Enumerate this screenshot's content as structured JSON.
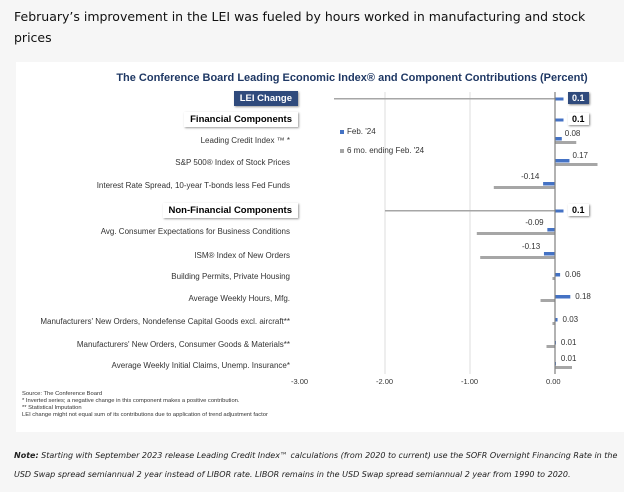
{
  "headline": "February’s improvement in the LEI was fueled by hours worked in manufacturing and stock prices",
  "chart_data": {
    "type": "bar",
    "orientation": "horizontal",
    "title": "The Conference Board Leading Economic Index® and Component Contributions (Percent)",
    "categories": [
      "LEI Change",
      "Financial Components",
      "Leading Credit Index ™ *",
      "S&P 500® Index of Stock Prices",
      "Interest Rate Spread, 10-year T-bonds less Fed Funds",
      "Non-Financial Components",
      "Avg. Consumer Expectations for Business Conditions",
      "ISM® Index of New Orders",
      "Building Permits, Private Housing",
      "Average Weekly Hours, Mfg.",
      "Manufacturers' New Orders, Nondefense Capital Goods excl. aircraft**",
      "Manufacturers' New Orders, Consumer Goods & Materials**",
      "Average Weekly Initial Claims, Unemp. Insurance*"
    ],
    "header_rows": [
      0,
      1,
      5
    ],
    "series": [
      {
        "name": "Feb. '24",
        "color": "#4472c4",
        "values": [
          0.1,
          0.1,
          0.08,
          0.17,
          -0.14,
          0.1,
          -0.09,
          -0.13,
          0.06,
          0.18,
          0.03,
          0.01,
          0.01
        ],
        "labels": [
          "0.1",
          "0.1",
          "0.08",
          "0.17",
          "-0.14",
          "0.1",
          "-0.09",
          "-0.13",
          "0.06",
          "0.18",
          "0.03",
          "0.01",
          "0.01"
        ]
      },
      {
        "name": "6 mo. ending Feb. '24",
        "color": "#a6a6a6",
        "values": [
          -2.6,
          0.03,
          0.25,
          0.5,
          -0.72,
          -2.0,
          -0.92,
          -0.88,
          -0.03,
          -0.17,
          -0.03,
          -0.1,
          0.2
        ]
      }
    ],
    "xlim": [
      -3,
      0.75
    ],
    "xticks": [
      "-3.00",
      "-2.00",
      "-1.00",
      "0.00"
    ],
    "grid": true,
    "legend": "upper-middle"
  },
  "footnotes": [
    "Source: The Conference Board",
    "*  Inverted series; a negative change in this component makes a positive contribution.",
    "**  Statistical Imputation",
    "LEI change might not equal sum of its contributions due to application of trend adjustment factor"
  ],
  "note": {
    "label": "Note:",
    "text": " Starting with September 2023 release Leading Credit Index™ calculations (from 2020 to current) use the SOFR Overnight Financing Rate in the USD Swap spread semiannual 2 year instead of LIBOR rate. LIBOR remains in the USD Swap spread semiannual 2 year from 1990 to 2020."
  }
}
